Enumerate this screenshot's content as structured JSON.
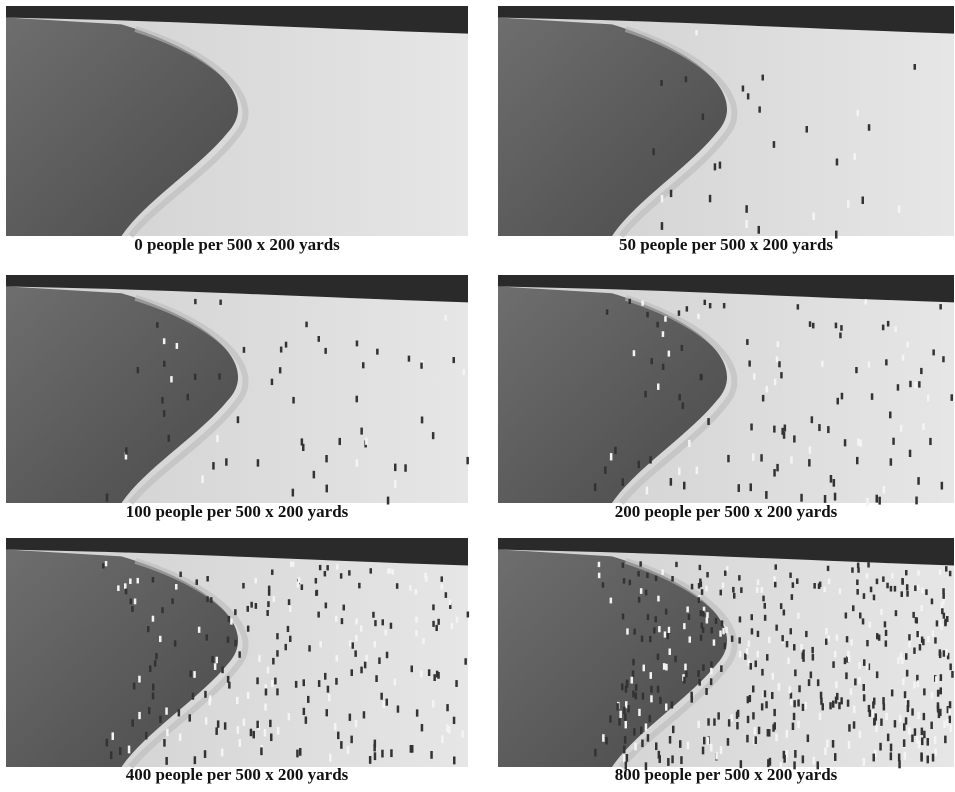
{
  "panels": [
    {
      "caption": "0 people per 500 x 200 yards"
    },
    {
      "caption": "50 people per 500 x 200 yards"
    },
    {
      "caption": "100 people per 500 x 200 yards"
    },
    {
      "caption": "200 people per 500 x 200 yards"
    },
    {
      "caption": "400 people per 500 x 200 yards"
    },
    {
      "caption": "800 people per 500 x 200 yards"
    }
  ]
}
